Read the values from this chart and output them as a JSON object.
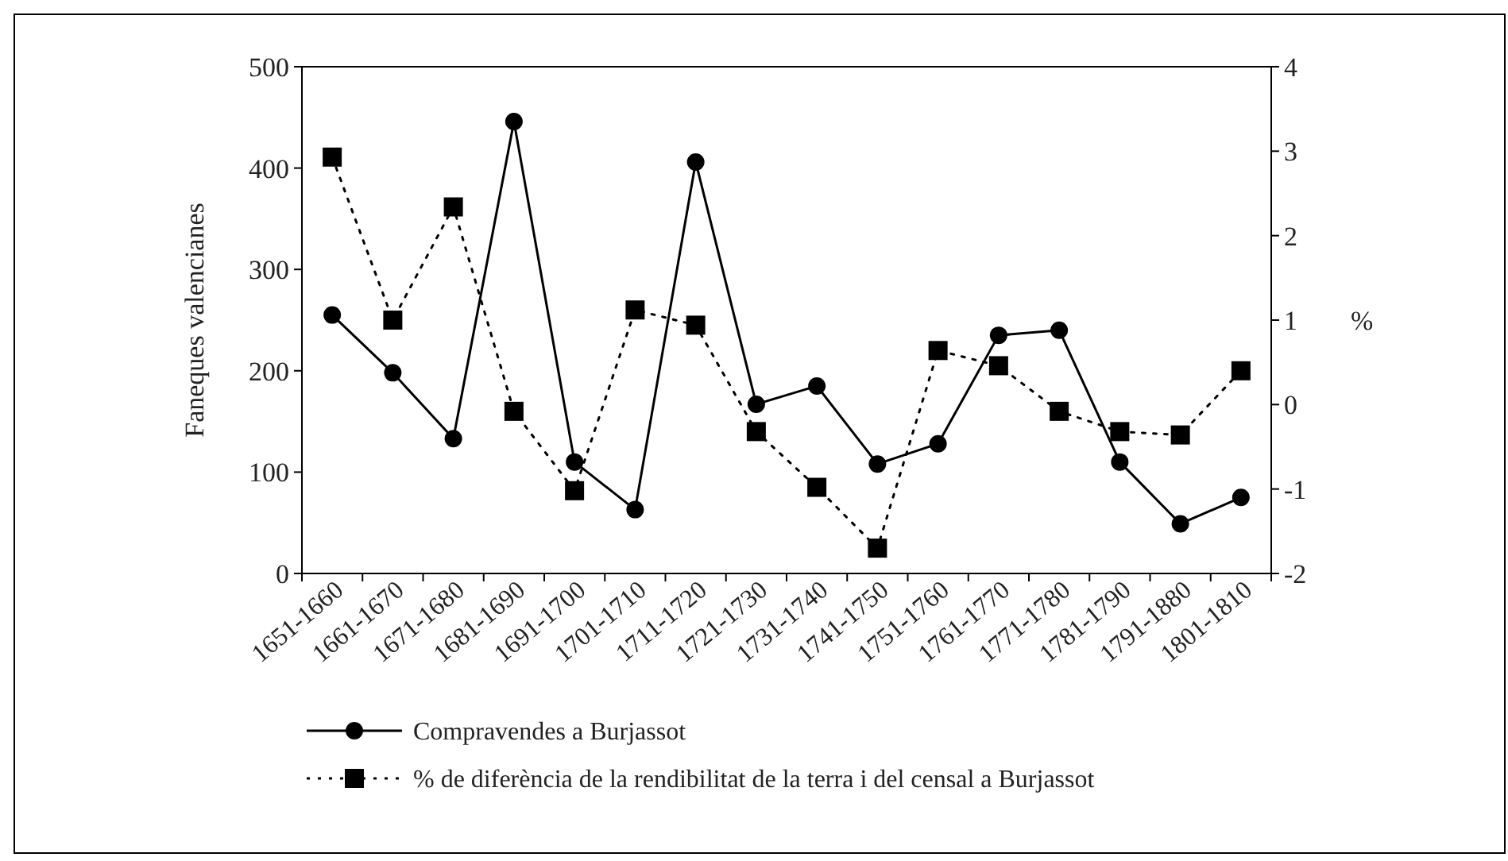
{
  "chart_data": {
    "type": "line",
    "ylabel": "Faneques valencianes",
    "y2label": "%",
    "categories": [
      "1651-1660",
      "1661-1670",
      "1671-1680",
      "1681-1690",
      "1691-1700",
      "1701-1710",
      "1711-1720",
      "1721-1730",
      "1731-1740",
      "1741-1750",
      "1751-1760",
      "1761-1770",
      "1771-1780",
      "1781-1790",
      "1791-1880",
      "1801-1810"
    ],
    "series": [
      {
        "name": "Compravendes a Burjassot",
        "color": "#000000",
        "marker": "circle",
        "line_style": "solid",
        "values": [
          255,
          198,
          133,
          446,
          110,
          63,
          406,
          167,
          185,
          108,
          128,
          235,
          240,
          110,
          49,
          75
        ]
      },
      {
        "name": "% de diferència de la rendibilitat de la terra i del censal a Burjassot",
        "color": "#000000",
        "marker": "square",
        "line_style": "dotted",
        "axis": "y2",
        "values": [
          2.93,
          1.0,
          2.34,
          -0.08,
          -1.02,
          1.12,
          0.94,
          -0.32,
          -0.98,
          -1.7,
          0.64,
          0.46,
          -0.08,
          -0.32,
          -0.36,
          0.4
        ]
      }
    ],
    "ylim": [
      0,
      500
    ],
    "yticks": [
      0,
      100,
      200,
      300,
      400,
      500
    ],
    "y2lim": [
      -2,
      4
    ],
    "y2ticks": [
      -2,
      -1,
      0,
      1,
      2,
      3,
      4
    ],
    "grid": false,
    "legend": "bottom"
  }
}
